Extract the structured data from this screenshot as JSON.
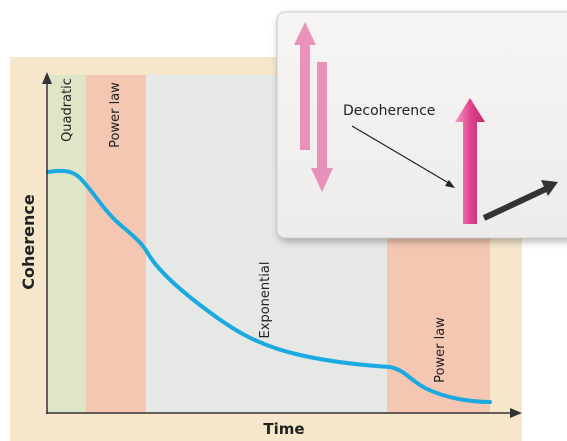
{
  "axes": {
    "y_label": "Coherence",
    "x_label": "Time"
  },
  "regions": [
    {
      "label": "Quadratic"
    },
    {
      "label": "Power law"
    },
    {
      "label": "Exponential"
    },
    {
      "label": "Power law"
    }
  ],
  "inset": {
    "label": "Decoherence"
  }
}
